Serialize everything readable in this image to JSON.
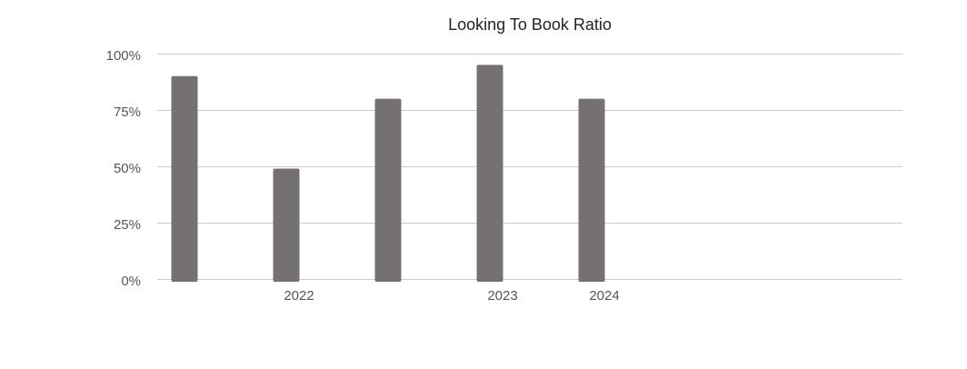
{
  "chart_data": {
    "type": "bar",
    "title": "Looking To Book Ratio",
    "xlabel": "",
    "ylabel": "",
    "categories": [
      "",
      "2022",
      "",
      "2023",
      "2024"
    ],
    "values": [
      90,
      49,
      80,
      95,
      80
    ],
    "ylim": [
      0,
      100
    ],
    "yticks": [
      0,
      25,
      50,
      75,
      100
    ],
    "ytick_labels": [
      "0%",
      "25%",
      "50%",
      "75%",
      "100%"
    ],
    "grid": true,
    "legend": "none",
    "colors": {
      "bar": "#757170",
      "grid": "#cccccc",
      "text": "#555555"
    }
  }
}
